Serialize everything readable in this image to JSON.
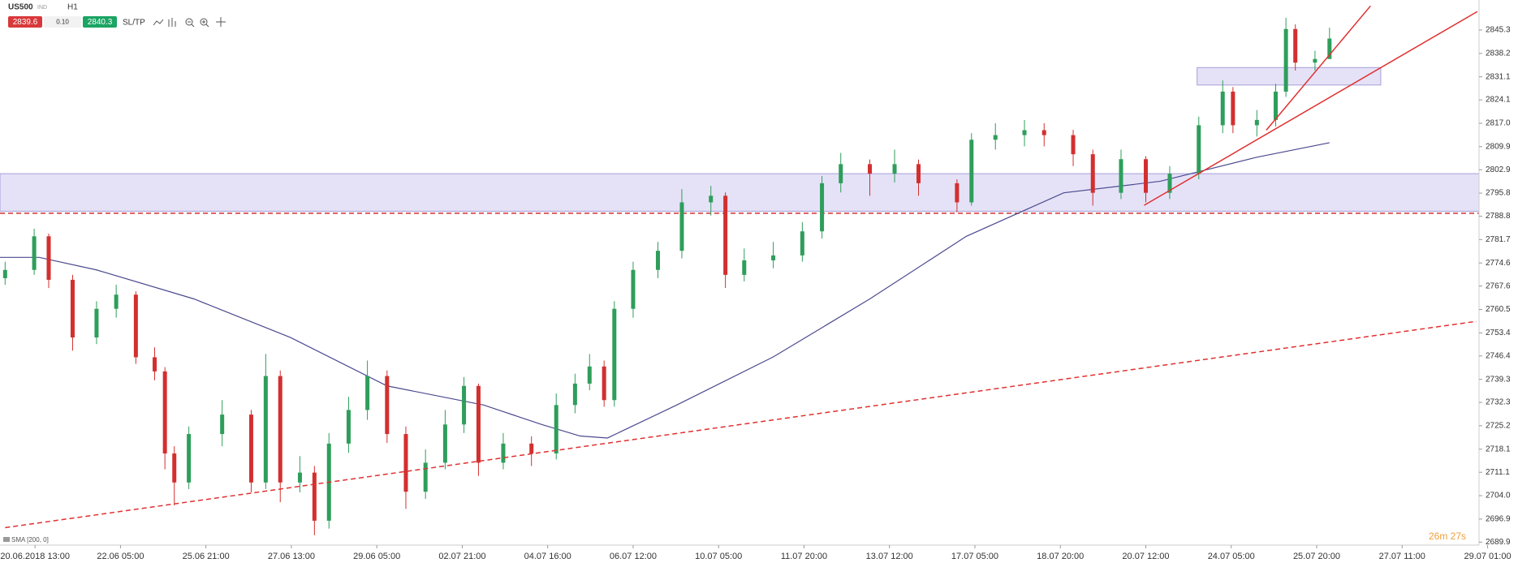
{
  "ui": {
    "symbol": "US500",
    "kind": "IND",
    "timeframe": "H1",
    "sell": 2839.6,
    "spread": "0.10",
    "buy": 2840.3,
    "sltp": "SL/TP",
    "timer": "26m 27s"
  },
  "chart_data": {
    "type": "candlestick",
    "up_color": "#2e9e5b",
    "down_color": "#d32f2f",
    "xlim": [
      -0.41,
      16.9
    ],
    "ylim": [
      2689.0,
      2854.4
    ],
    "xticks": [
      {
        "value": 0,
        "label": "20.06.2018 13:00"
      },
      {
        "value": 1,
        "label": "22.06 05:00"
      },
      {
        "value": 2,
        "label": "25.06 21:00"
      },
      {
        "value": 3,
        "label": "27.06 13:00"
      },
      {
        "value": 4,
        "label": "29.06 05:00"
      },
      {
        "value": 5,
        "label": "02.07 21:00"
      },
      {
        "value": 6,
        "label": "04.07 16:00"
      },
      {
        "value": 7,
        "label": "06.07 12:00"
      },
      {
        "value": 8,
        "label": "10.07 05:00"
      },
      {
        "value": 9,
        "label": "11.07 20:00"
      },
      {
        "value": 10,
        "label": "13.07 12:00"
      },
      {
        "value": 11,
        "label": "17.07 05:00"
      },
      {
        "value": 12,
        "label": "18.07 20:00"
      },
      {
        "value": 13,
        "label": "20.07 12:00"
      },
      {
        "value": 14,
        "label": "24.07 05:00"
      },
      {
        "value": 15,
        "label": "25.07 20:00"
      },
      {
        "value": 16,
        "label": "27.07 11:00"
      },
      {
        "value": 17,
        "label": "29.07 01:00"
      }
    ],
    "yticks": [
      2845.3,
      2838.2,
      2831.1,
      2824.1,
      {
        "value": 2817,
        "label": "2817.0"
      },
      2809.9,
      2802.9,
      2795.8,
      2788.8,
      2781.7,
      2774.6,
      2767.6,
      2760.5,
      2753.4,
      2746.4,
      2739.3,
      2732.3,
      2725.2,
      2718.1,
      2711.1,
      {
        "value": 2704,
        "label": "2704.0"
      },
      2696.9,
      2689.9
    ],
    "x": [
      -0.35,
      -0.01,
      0.16,
      0.44,
      0.72,
      0.95,
      1.18,
      1.4,
      1.52,
      1.63,
      1.8,
      2.19,
      2.53,
      2.7,
      2.87,
      3.1,
      3.27,
      3.44,
      3.67,
      3.89,
      4.12,
      4.34,
      4.57,
      4.8,
      5.02,
      5.19,
      5.48,
      5.81,
      6.1,
      6.32,
      6.49,
      6.66,
      6.78,
      7.0,
      7.29,
      7.57,
      7.91,
      8.08,
      8.3,
      8.64,
      8.98,
      9.21,
      9.43,
      9.77,
      10.06,
      10.34,
      10.79,
      10.96,
      11.24,
      11.58,
      11.81,
      12.15,
      12.38,
      12.71,
      13.0,
      13.28,
      13.62,
      13.9,
      14.02,
      14.3,
      14.52,
      14.64,
      14.75,
      14.98,
      15.15
    ],
    "open": [
      2770,
      2772.5,
      2782.7,
      2769.5,
      2752,
      2760.7,
      2765,
      2746,
      2741.7,
      2716.8,
      2708,
      2722.7,
      2728.6,
      2708,
      2740.3,
      2708,
      2711,
      2696.4,
      2719.8,
      2730,
      2740.3,
      2722.7,
      2705.2,
      2714,
      2725.6,
      2737.3,
      2714,
      2719.8,
      2716.8,
      2731.5,
      2738,
      2743.2,
      2733,
      2760.7,
      2772.5,
      2778.3,
      2793,
      2795,
      2771,
      2775.4,
      2776.9,
      2784.2,
      2798.8,
      2804.6,
      2801.7,
      2804.6,
      2798.8,
      2793,
      2812,
      2813.4,
      2814.9,
      2813.4,
      2807.6,
      2795.9,
      2806.1,
      2795.9,
      2801.7,
      2816.4,
      2826.6,
      2816.4,
      2818,
      2826.6,
      2845.6,
      2835.4,
      2836.5
    ],
    "high": [
      2775,
      2785,
      2783.5,
      2771,
      2763,
      2768,
      2766,
      2749,
      2743,
      2719,
      2725,
      2733,
      2730,
      2747,
      2742,
      2716,
      2713,
      2723,
      2734,
      2745,
      2742,
      2725,
      2718,
      2730,
      2740,
      2738,
      2723,
      2722,
      2735,
      2741,
      2747,
      2745,
      2763,
      2775,
      2781,
      2797,
      2798,
      2796,
      2779,
      2781,
      2787,
      2801,
      2808,
      2806,
      2809,
      2806,
      2800,
      2814,
      2817,
      2818,
      2817,
      2815,
      2809,
      2809,
      2807,
      2804,
      2819,
      2830,
      2828,
      2821,
      2829,
      2849,
      2847,
      2839,
      2846
    ],
    "low": [
      2768,
      2771,
      2767,
      2748,
      2750,
      2758,
      2744,
      2739,
      2712,
      2701,
      2706,
      2719,
      2705,
      2706,
      2702,
      2705,
      2692,
      2694,
      2717,
      2727,
      2720,
      2700,
      2703,
      2712,
      2723,
      2710,
      2712,
      2713,
      2715,
      2729,
      2736,
      2731,
      2731,
      2758,
      2770,
      2776,
      2789,
      2767,
      2769,
      2773,
      2775,
      2782,
      2796,
      2795,
      2799,
      2795,
      2790,
      2792,
      2809,
      2810,
      2810,
      2804,
      2792,
      2794,
      2793,
      2794,
      2800,
      2814,
      2814,
      2813,
      2816,
      2825,
      2833,
      2833,
      2838
    ],
    "close": [
      2772.5,
      2782.7,
      2769.5,
      2752,
      2760.7,
      2765,
      2746,
      2741.7,
      2716.8,
      2708,
      2722.7,
      2728.6,
      2708,
      2740.3,
      2708,
      2711,
      2696.4,
      2719.8,
      2730,
      2740.3,
      2722.7,
      2705.2,
      2714,
      2725.6,
      2737.3,
      2714,
      2719.8,
      2716.8,
      2731.5,
      2738,
      2743.2,
      2733,
      2760.7,
      2772.5,
      2778.3,
      2793,
      2795,
      2771,
      2775.4,
      2776.9,
      2784.2,
      2798.8,
      2804.6,
      2801.7,
      2804.6,
      2798.8,
      2793,
      2812,
      2813.4,
      2814.9,
      2813.4,
      2807.6,
      2795.9,
      2806.1,
      2795.9,
      2801.7,
      2816.4,
      2826.6,
      2816.4,
      2818,
      2826.6,
      2845.6,
      2835.4,
      2836.5,
      2842.7
    ],
    "sma": {
      "name": "SMA [200, 0]",
      "color": "#4b4a8f",
      "x": [
        -0.41,
        0.05,
        0.72,
        1.86,
        2.99,
        4.12,
        5.25,
        5.93,
        6.38,
        6.7,
        7.51,
        8.64,
        9.77,
        10.9,
        12.04,
        13.17,
        14.3,
        15.15
      ],
      "values": [
        2776.3,
        2776.3,
        2772.5,
        2763.7,
        2752,
        2737.3,
        2731.5,
        2725.6,
        2722.1,
        2721.5,
        2731.5,
        2746.1,
        2763.7,
        2782.7,
        2795.9,
        2799.4,
        2806.7,
        2811.1
      ]
    },
    "zones": [
      {
        "y": [
          2790.3,
          2801.7
        ]
      },
      {
        "x": [
          13.6,
          15.75
        ],
        "y": [
          2828.6,
          2833.9
        ]
      }
    ],
    "hlines": [
      2789.7
    ],
    "trendlines": [
      {
        "x": [
          -0.35,
          16.87
        ],
        "y": [
          2694.3,
          2756.9
        ],
        "dashed": true
      },
      {
        "x": [
          12.98,
          16.88
        ],
        "y": [
          2792.1,
          2850.9
        ],
        "dashed": false
      },
      {
        "x": [
          14.41,
          15.63
        ],
        "y": [
          2814.9,
          2852.6
        ],
        "dashed": false
      }
    ]
  }
}
